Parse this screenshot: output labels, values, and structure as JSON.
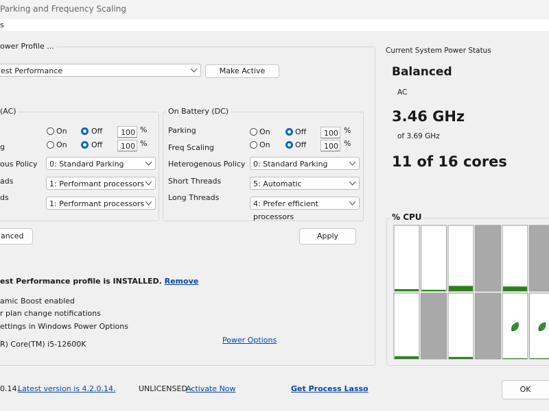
{
  "window": {
    "title": "Parking and Frequency Scaling",
    "menu": "s"
  },
  "profile": {
    "group_label": "ower Profile ...",
    "selected": "est Performance",
    "make_active": "Make Active"
  },
  "ac": {
    "label": "(AC)",
    "parking": {
      "on": "On",
      "off": "Off",
      "value": "100",
      "unit": "%"
    },
    "freq": {
      "label": "g",
      "on": "On",
      "off": "Off",
      "value": "100",
      "unit": "%"
    },
    "policy": {
      "label": "ous Policy",
      "value": "0: Standard Parking"
    },
    "short": {
      "label": "ads",
      "value": "1: Performant processors"
    },
    "long": {
      "label": "ds",
      "value": "1: Performant processors"
    }
  },
  "dc": {
    "label": "On Battery (DC)",
    "parking": {
      "label": "Parking",
      "on": "On",
      "off": "Off",
      "value": "100",
      "unit": "%"
    },
    "freq": {
      "label": "Freq Scaling",
      "on": "On",
      "off": "Off",
      "value": "100",
      "unit": "%"
    },
    "policy": {
      "label": "Heterogenous Policy",
      "value": "0: Standard Parking"
    },
    "short": {
      "label": "Short Threads",
      "value": "5: Automatic"
    },
    "long": {
      "label": "Long Threads",
      "value": "4: Prefer efficient processors"
    }
  },
  "buttons": {
    "advanced": "anced",
    "apply": "Apply",
    "ok": "OK"
  },
  "info": {
    "installed": "est Performance profile is INSTALLED.",
    "remove": "Remove",
    "lines": [
      "amic Boost enabled",
      "r plan change notifications",
      "ettings in Windows Power Options"
    ],
    "cpu_name": "R) Core(TM) i5-12600K",
    "power_options": "Power Options"
  },
  "footer": {
    "version": "0.14.",
    "latest": "Latest version is 4.2.0.14.",
    "license": "UNLICENSED - ",
    "activate": "Activate Now",
    "get": "Get Process Lasso"
  },
  "status": {
    "heading": "Current System Power Status",
    "plan": "Balanced",
    "source": "AC",
    "freq": "3.46 GHz",
    "max_freq": "of 3.69 GHz",
    "cores": "11 of 16 cores"
  },
  "cpu": {
    "label": "% CPU",
    "cores": [
      {
        "usage": 3,
        "parked": false,
        "efficient": false
      },
      {
        "usage": 2,
        "parked": false,
        "efficient": false
      },
      {
        "usage": 8,
        "parked": false,
        "efficient": false
      },
      {
        "usage": null,
        "parked": true,
        "efficient": false
      },
      {
        "usage": 7,
        "parked": false,
        "efficient": false
      },
      {
        "usage": null,
        "parked": true,
        "efficient": false
      },
      {
        "usage": 4,
        "parked": false,
        "efficient": false
      },
      {
        "usage": null,
        "parked": true,
        "efficient": false
      },
      {
        "usage": 3,
        "parked": false,
        "efficient": false
      },
      {
        "usage": null,
        "parked": true,
        "efficient": false
      },
      {
        "usage": 1,
        "parked": false,
        "efficient": true
      },
      {
        "usage": 1,
        "parked": false,
        "efficient": true
      }
    ]
  }
}
